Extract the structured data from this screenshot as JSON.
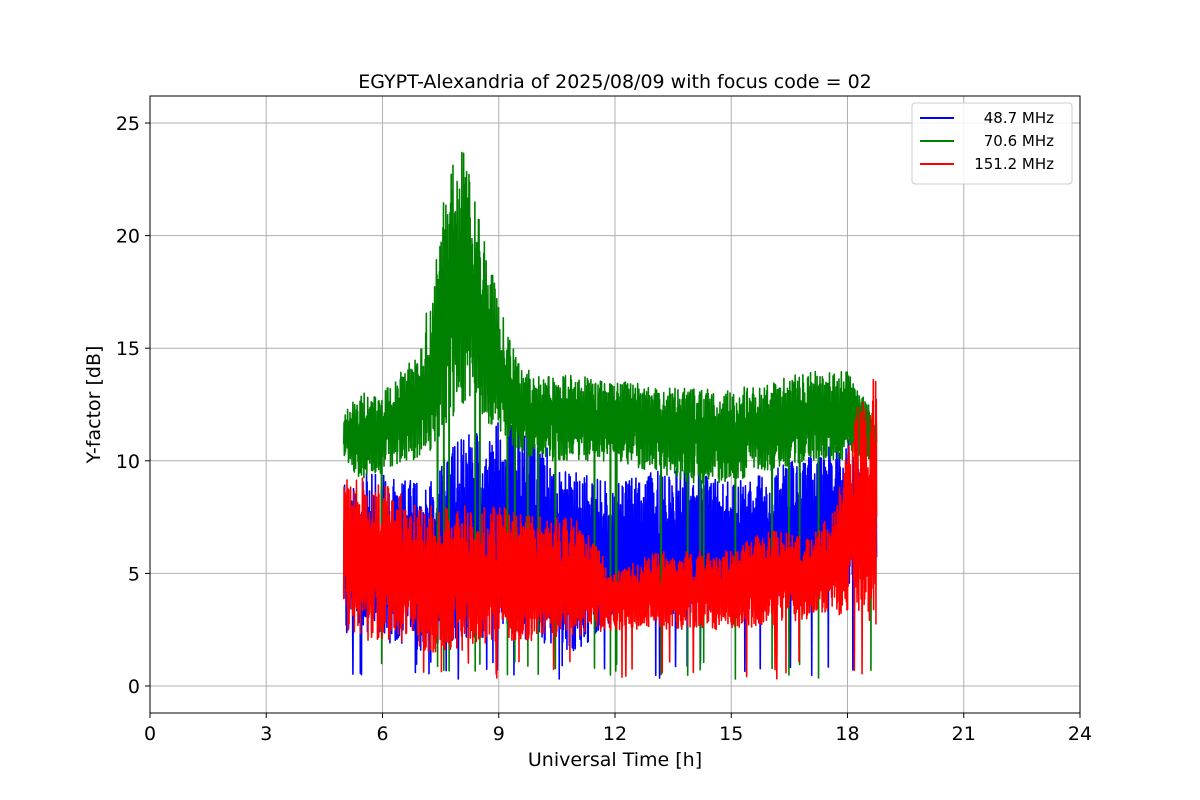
{
  "chart_data": {
    "type": "line",
    "title": "EGYPT-Alexandria of 2025/08/09 with focus code = 02",
    "xlabel": "Universal Time [h]",
    "ylabel": "Y-factor [dB]",
    "xlim": [
      0,
      24
    ],
    "ylim": [
      -1.2,
      26.2
    ],
    "xticks": [
      0,
      3,
      6,
      9,
      12,
      15,
      18,
      21,
      24
    ],
    "yticks": [
      0,
      5,
      10,
      15,
      20,
      25
    ],
    "xtick_labels": [
      "0",
      "3",
      "6",
      "9",
      "12",
      "15",
      "18",
      "21",
      "24"
    ],
    "ytick_labels": [
      "0",
      "5",
      "10",
      "15",
      "20",
      "25"
    ],
    "grid": true,
    "legend_position": "top-right",
    "series": [
      {
        "name": "48.7 MHz",
        "color": "#0000ff",
        "data_range": [
          5.0,
          18.75
        ],
        "envelope": {
          "x": [
            5.0,
            6.0,
            7.0,
            8.0,
            9.0,
            10.0,
            11.0,
            12.0,
            13.0,
            14.0,
            15.0,
            16.0,
            17.0,
            18.0,
            18.75
          ],
          "low": [
            2.0,
            2.0,
            1.5,
            2.0,
            2.0,
            2.0,
            1.5,
            3.0,
            3.0,
            3.0,
            3.5,
            4.0,
            4.0,
            4.5,
            4.5
          ],
          "high": [
            9.5,
            9.5,
            9.0,
            11.0,
            12.0,
            11.0,
            9.5,
            9.0,
            9.5,
            10.0,
            9.0,
            9.5,
            10.5,
            11.0,
            9.0
          ]
        }
      },
      {
        "name": "70.6 MHz",
        "color": "#008000",
        "data_range": [
          5.0,
          18.75
        ],
        "envelope": {
          "x": [
            5.0,
            5.5,
            6.0,
            6.5,
            7.0,
            7.5,
            8.0,
            8.5,
            9.0,
            9.5,
            10.0,
            11.0,
            12.0,
            13.0,
            14.0,
            15.0,
            16.0,
            17.0,
            18.0,
            18.75
          ],
          "low": [
            10.0,
            9.0,
            9.5,
            10.0,
            10.0,
            11.0,
            12.0,
            12.0,
            11.0,
            10.5,
            10.0,
            10.0,
            10.0,
            9.5,
            9.0,
            9.0,
            9.5,
            10.0,
            10.0,
            10.0
          ],
          "high": [
            12.5,
            13.0,
            13.0,
            14.0,
            15.0,
            21.0,
            24.5,
            21.0,
            17.0,
            14.5,
            13.8,
            13.8,
            13.5,
            13.5,
            13.2,
            13.2,
            13.5,
            14.0,
            14.0,
            12.0
          ]
        }
      },
      {
        "name": "151.2 MHz",
        "color": "#ff0000",
        "data_range": [
          5.0,
          18.75
        ],
        "envelope": {
          "x": [
            5.0,
            6.0,
            7.0,
            8.0,
            9.0,
            10.0,
            11.0,
            12.0,
            13.0,
            14.0,
            15.0,
            16.0,
            17.0,
            17.7,
            18.1,
            18.5,
            18.75
          ],
          "low": [
            2.0,
            2.0,
            1.5,
            1.5,
            2.0,
            2.0,
            2.0,
            2.5,
            2.5,
            2.5,
            2.5,
            2.7,
            3.0,
            3.0,
            3.5,
            3.0,
            2.5
          ],
          "high": [
            9.5,
            9.0,
            8.0,
            8.0,
            8.0,
            7.5,
            7.5,
            5.0,
            6.0,
            6.0,
            6.0,
            7.0,
            6.5,
            8.0,
            12.0,
            13.0,
            14.0
          ]
        }
      }
    ]
  }
}
